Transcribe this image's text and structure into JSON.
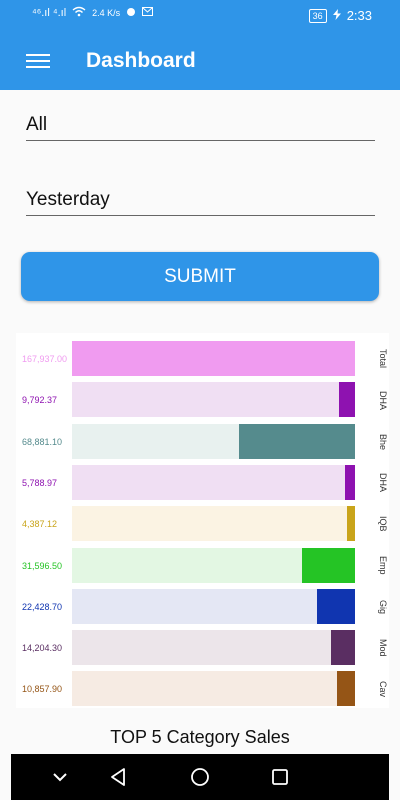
{
  "status": {
    "network": "⁴⁶.ıl ⁴.ıl",
    "speed": "2.4 K/s",
    "battery": "36",
    "time": "2:33"
  },
  "header": {
    "title": "Dashboard"
  },
  "form": {
    "filter_value": "All",
    "period_value": "Yesterday",
    "submit_label": "SUBMIT"
  },
  "chart_data": {
    "type": "bar",
    "orientation": "horizontal",
    "categories": [
      "Total",
      "DHA",
      "Bhe",
      "DHA",
      "IQB",
      "Emp",
      "Gig",
      "Mod",
      "Cav"
    ],
    "values": [
      167937.0,
      9792.37,
      68881.1,
      5788.97,
      4387.12,
      31596.5,
      22428.7,
      14204.3,
      10857.9
    ],
    "value_labels": [
      "167,937.00",
      "9,792.37",
      "68,881.10",
      "5,788.97",
      "4,387.12",
      "31,596.50",
      "22,428.70",
      "14,204.30",
      "10,857.90"
    ],
    "colors": [
      "#f09bf0",
      "#8e12b0",
      "#558b8d",
      "#8e12b0",
      "#c9a41a",
      "#25c425",
      "#1035b0",
      "#5a2e62",
      "#955516"
    ],
    "track_colors": [
      "#f09bf0",
      "#f0dff3",
      "#e8f1ef",
      "#f0dff3",
      "#fbf3e3",
      "#e3f7e3",
      "#e4e7f4",
      "#ece5ea",
      "#f6ebe3"
    ],
    "xlim": [
      0,
      167937.0
    ]
  },
  "caption": "TOP 5 Category Sales"
}
